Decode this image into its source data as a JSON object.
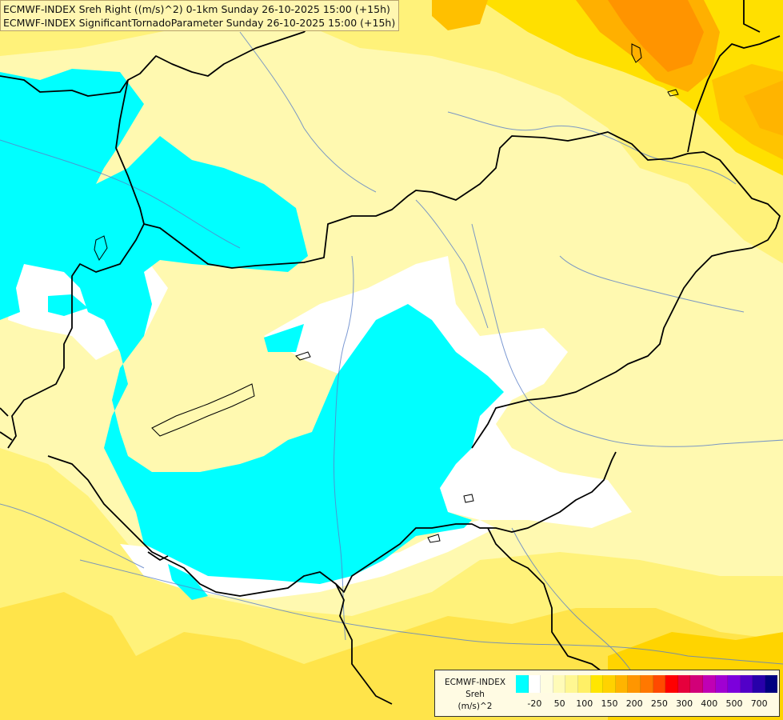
{
  "header": {
    "line1": "ECMWF-INDEX Sreh Right ((m/s)^2) 0-1km Sunday 26-10-2025 15:00 (+15h)",
    "line2": "ECMWF-INDEX SignificantTornadoParameter Sunday 26-10-2025 15:00 (+15h)"
  },
  "legend": {
    "title_line1": "ECMWF-INDEX",
    "title_line2": "Sreh",
    "title_line3": "(m/s)^2",
    "colors": [
      "#00ffff",
      "#ffffff",
      "#fffde0",
      "#fffbb8",
      "#fff792",
      "#fff066",
      "#ffe600",
      "#ffd200",
      "#ffb400",
      "#ff9600",
      "#ff7800",
      "#ff4a00",
      "#ff0000",
      "#e6003c",
      "#d20078",
      "#c000b4",
      "#a000d2",
      "#7c00dc",
      "#5200c8",
      "#2800aa",
      "#000080"
    ],
    "ticks": [
      {
        "label": "-20",
        "index": 1
      },
      {
        "label": "50",
        "index": 3
      },
      {
        "label": "100",
        "index": 5
      },
      {
        "label": "150",
        "index": 7
      },
      {
        "label": "200",
        "index": 9
      },
      {
        "label": "250",
        "index": 11
      },
      {
        "label": "300",
        "index": 13
      },
      {
        "label": "400",
        "index": 15
      },
      {
        "label": "500",
        "index": 17
      },
      {
        "label": "700",
        "index": 19
      }
    ]
  }
}
